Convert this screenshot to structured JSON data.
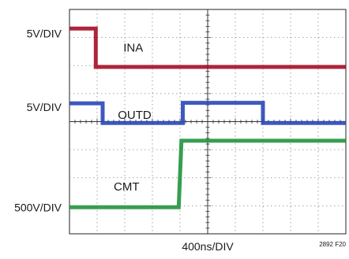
{
  "chart_data": {
    "type": "line",
    "title": "",
    "xlabel": "400ns/DIV",
    "figure_id": "2892 F20",
    "x_divisions": 10,
    "y_divisions": 8,
    "grid": true,
    "channel_scales": [
      {
        "text": "5V/DIV"
      },
      {
        "text": "5V/DIV"
      },
      {
        "text": "500V/DIV"
      }
    ],
    "series": [
      {
        "name": "INA",
        "color": "#a50d26",
        "points": [
          [
            0,
            7.32
          ],
          [
            0.95,
            7.32
          ],
          [
            0.95,
            5.95
          ],
          [
            10,
            5.95
          ]
        ]
      },
      {
        "name": "OUTD",
        "color": "#2a47b8",
        "points": [
          [
            0,
            4.65
          ],
          [
            1.2,
            4.65
          ],
          [
            1.2,
            3.95
          ],
          [
            4.1,
            3.95
          ],
          [
            4.1,
            4.67
          ],
          [
            7.0,
            4.67
          ],
          [
            7.0,
            3.95
          ],
          [
            10,
            3.95
          ]
        ]
      },
      {
        "name": "CMT",
        "color": "#22933d",
        "points": [
          [
            0,
            0.95
          ],
          [
            3.95,
            0.95
          ],
          [
            4.05,
            3.32
          ],
          [
            10,
            3.32
          ]
        ]
      }
    ]
  }
}
